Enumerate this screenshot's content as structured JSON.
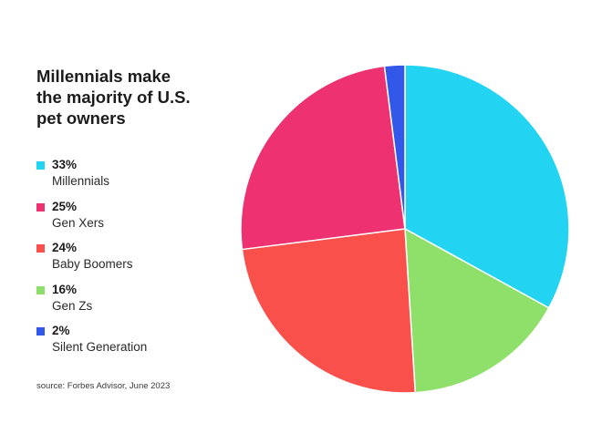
{
  "title_lines": [
    "Millennials make",
    "the majority of U.S.",
    "pet owners"
  ],
  "source": "source: Forbes Advisor, June 2023",
  "colors": {
    "millennials": "#22d3f2",
    "gen_xers": "#ee3170",
    "baby_boomers": "#f9504b",
    "gen_zs": "#8ee06a",
    "silent_generation": "#3158e8"
  },
  "chart_data": {
    "type": "pie",
    "title": "Millennials make the majority of U.S. pet owners",
    "categories": [
      "Millennials",
      "Gen Xers",
      "Baby Boomers",
      "Gen Zs",
      "Silent Generation"
    ],
    "values": [
      33,
      25,
      24,
      16,
      2
    ],
    "value_labels": [
      "33%",
      "25%",
      "24%",
      "16%",
      "2%"
    ],
    "legend_position": "left",
    "slice_order_clockwise_from_top": [
      "Millennials",
      "Gen Zs",
      "Baby Boomers",
      "Gen Xers",
      "Silent Generation"
    ]
  }
}
